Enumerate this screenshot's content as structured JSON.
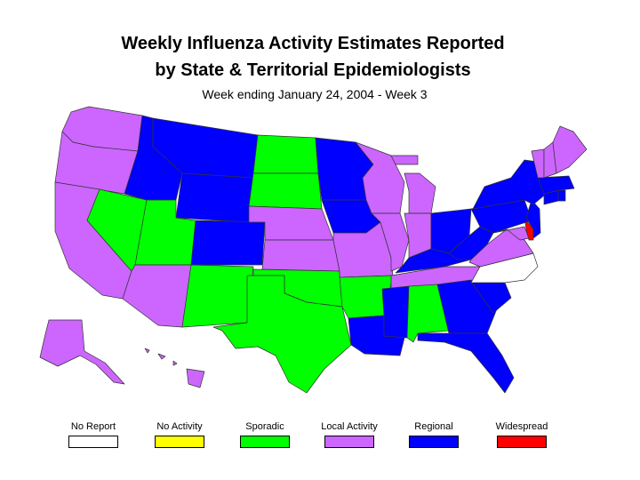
{
  "title": {
    "line1": "Weekly Influenza Activity Estimates Reported",
    "line2": "by State & Territorial Epidemiologists",
    "subtitle": "Week ending January 24, 2004 - Week 3"
  },
  "colors": {
    "no_report": "#ffffff",
    "no_activity": "#ffff00",
    "sporadic": "#00ff00",
    "local": "#cc66ff",
    "regional": "#0000ff",
    "widespread": "#ff0000"
  },
  "legend": [
    {
      "key": "no_report",
      "label": "No Report",
      "color": "#ffffff"
    },
    {
      "key": "no_activity",
      "label": "No Activity",
      "color": "#ffff00"
    },
    {
      "key": "sporadic",
      "label": "Sporadic",
      "color": "#00ff00"
    },
    {
      "key": "local",
      "label": "Local Activity",
      "color": "#cc66ff"
    },
    {
      "key": "regional",
      "label": "Regional",
      "color": "#0000ff"
    },
    {
      "key": "widespread",
      "label": "Widespread",
      "color": "#ff0000"
    }
  ],
  "states": {
    "WA": "local",
    "OR": "local",
    "CA": "local",
    "ID": "regional",
    "NV": "sporadic",
    "MT": "regional",
    "WY": "regional",
    "UT": "sporadic",
    "AZ": "local",
    "CO": "regional",
    "NM": "sporadic",
    "ND": "sporadic",
    "SD": "sporadic",
    "NE": "local",
    "KS": "local",
    "OK": "sporadic",
    "TX": "sporadic",
    "MN": "regional",
    "IA": "regional",
    "MO": "local",
    "AR": "sporadic",
    "LA": "regional",
    "WI": "local",
    "IL": "local",
    "MI": "local",
    "IN": "local",
    "OH": "regional",
    "KY": "regional",
    "TN": "local",
    "MS": "regional",
    "AL": "sporadic",
    "GA": "regional",
    "FL": "regional",
    "SC": "regional",
    "NC": "no_report",
    "VA": "local",
    "WV": "regional",
    "MD": "local",
    "DE": "widespread",
    "PA": "regional",
    "NJ": "regional",
    "NY": "regional",
    "CT": "regional",
    "RI": "regional",
    "MA": "regional",
    "VT": "local",
    "NH": "local",
    "ME": "local",
    "AK": "local",
    "HI": "local"
  }
}
